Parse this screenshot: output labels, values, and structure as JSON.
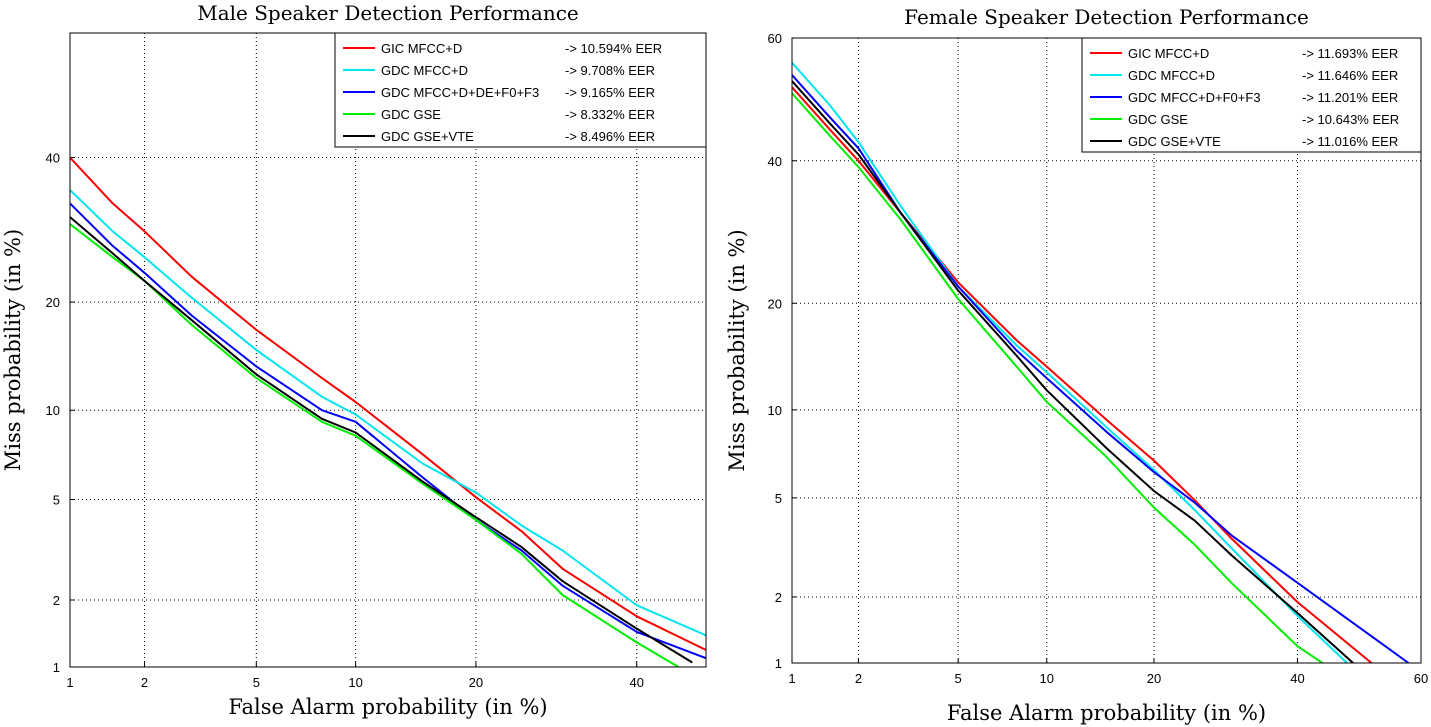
{
  "chart_data": [
    {
      "type": "line",
      "scale": "normal-deviate",
      "title": "Male Speaker Detection Performance",
      "xlabel": "False Alarm probability (in %)",
      "ylabel": "Miss probability (in %)",
      "xlim": [
        1,
        50
      ],
      "ylim": [
        1,
        60
      ],
      "xticks": [
        1,
        2,
        5,
        10,
        20,
        40
      ],
      "yticks": [
        1,
        2,
        5,
        10,
        20,
        40
      ],
      "grid": true,
      "legend_position": "top-right",
      "series": [
        {
          "name": "GIC MFCC+D",
          "eer": "-> 10.594% EER",
          "color": "#ff0000",
          "x": [
            1,
            1.5,
            2,
            3,
            5,
            8,
            10,
            15,
            20,
            25,
            30,
            40,
            50
          ],
          "y": [
            40,
            33,
            29,
            23,
            17,
            12.5,
            10.6,
            7.2,
            5.1,
            3.8,
            2.7,
            1.7,
            1.2
          ]
        },
        {
          "name": "GDC MFCC+D",
          "eer": "-> 9.708% EER",
          "color": "#00e5ee",
          "x": [
            1,
            1.5,
            2,
            3,
            5,
            8,
            10,
            15,
            20,
            25,
            30,
            40,
            50
          ],
          "y": [
            35,
            29,
            25.5,
            20.5,
            15,
            11,
            9.7,
            6.7,
            5.3,
            4,
            3.2,
            1.9,
            1.4
          ]
        },
        {
          "name": "GDC MFCC+D+DE+F0+F3",
          "eer": "-> 9.165% EER",
          "color": "#0000ff",
          "x": [
            1,
            1.5,
            2,
            3,
            5,
            8,
            10,
            15,
            20,
            25,
            30,
            40,
            50
          ],
          "y": [
            33,
            27,
            23.5,
            18.5,
            13.5,
            10,
            9.2,
            6,
            4.2,
            3.2,
            2.3,
            1.45,
            1.1
          ]
        },
        {
          "name": "GDC GSE",
          "eer": "-> 8.332% EER",
          "color": "#00ee00",
          "x": [
            1,
            1.5,
            2,
            3,
            5,
            8,
            10,
            15,
            20,
            25,
            30,
            40,
            46
          ],
          "y": [
            30,
            25.5,
            22.5,
            17.5,
            12.5,
            9.2,
            8.3,
            5.7,
            4.2,
            3.1,
            2.1,
            1.3,
            1
          ]
        },
        {
          "name": "GDC GSE+VTE",
          "eer": "-> 8.496% EER",
          "color": "#000000",
          "x": [
            1,
            1.5,
            2,
            3,
            5,
            8,
            10,
            15,
            20,
            25,
            30,
            40,
            48
          ],
          "y": [
            31,
            26,
            22.5,
            18,
            12.8,
            9.4,
            8.5,
            5.8,
            4.3,
            3.3,
            2.4,
            1.5,
            1.05
          ]
        }
      ]
    },
    {
      "type": "line",
      "scale": "normal-deviate",
      "title": "Female Speaker Detection Performance",
      "xlabel": "False Alarm probability (in %)",
      "ylabel": "Miss probability (in %)",
      "xlim": [
        1,
        60
      ],
      "ylim": [
        1,
        60
      ],
      "xticks": [
        1,
        2,
        5,
        10,
        20,
        40,
        60
      ],
      "yticks": [
        1,
        2,
        5,
        10,
        20,
        40,
        60
      ],
      "grid": true,
      "legend_position": "top-right",
      "series": [
        {
          "name": "GIC MFCC+D",
          "eer": "-> 11.693% EER",
          "color": "#ff0000",
          "x": [
            1,
            1.5,
            2,
            3,
            5,
            8,
            10,
            15,
            20,
            25,
            30,
            40,
            52
          ],
          "y": [
            52,
            45,
            40,
            32,
            22.5,
            16,
            13.5,
            9.3,
            6.8,
            4.9,
            3.5,
            1.9,
            1
          ]
        },
        {
          "name": "GDC MFCC+D",
          "eer": "-> 11.646% EER",
          "color": "#00e5ee",
          "x": [
            1,
            1.5,
            2,
            3,
            5,
            8,
            10,
            15,
            20,
            25,
            30,
            40,
            48
          ],
          "y": [
            56,
            49,
            43,
            33,
            22,
            15.5,
            13,
            8.8,
            6.3,
            4.5,
            3.2,
            1.65,
            1
          ]
        },
        {
          "name": "GDC MFCC+D+F0+F3",
          "eer": "-> 11.201% EER",
          "color": "#0000ff",
          "x": [
            1,
            1.5,
            2,
            3,
            5,
            8,
            10,
            15,
            20,
            25,
            30,
            40,
            58
          ],
          "y": [
            54,
            47,
            42,
            32,
            22,
            15,
            12.5,
            8.5,
            6.2,
            4.8,
            3.6,
            2.3,
            1
          ]
        },
        {
          "name": "GDC GSE",
          "eer": "-> 10.643% EER",
          "color": "#00ee00",
          "x": [
            1,
            1.5,
            2,
            3,
            5,
            8,
            10,
            15,
            20,
            25,
            30,
            40,
            44
          ],
          "y": [
            51,
            44,
            39,
            31,
            20.5,
            13.5,
            10.6,
            7,
            4.6,
            3.3,
            2.3,
            1.2,
            1
          ]
        },
        {
          "name": "GDC GSE+VTE",
          "eer": "-> 11.016% EER",
          "color": "#000000",
          "x": [
            1,
            1.5,
            2,
            3,
            5,
            8,
            10,
            15,
            20,
            25,
            30,
            40,
            49
          ],
          "y": [
            53,
            46,
            41,
            32,
            21.5,
            14.5,
            11.5,
            7.5,
            5.3,
            4.1,
            3,
            1.7,
            1
          ]
        }
      ]
    }
  ]
}
